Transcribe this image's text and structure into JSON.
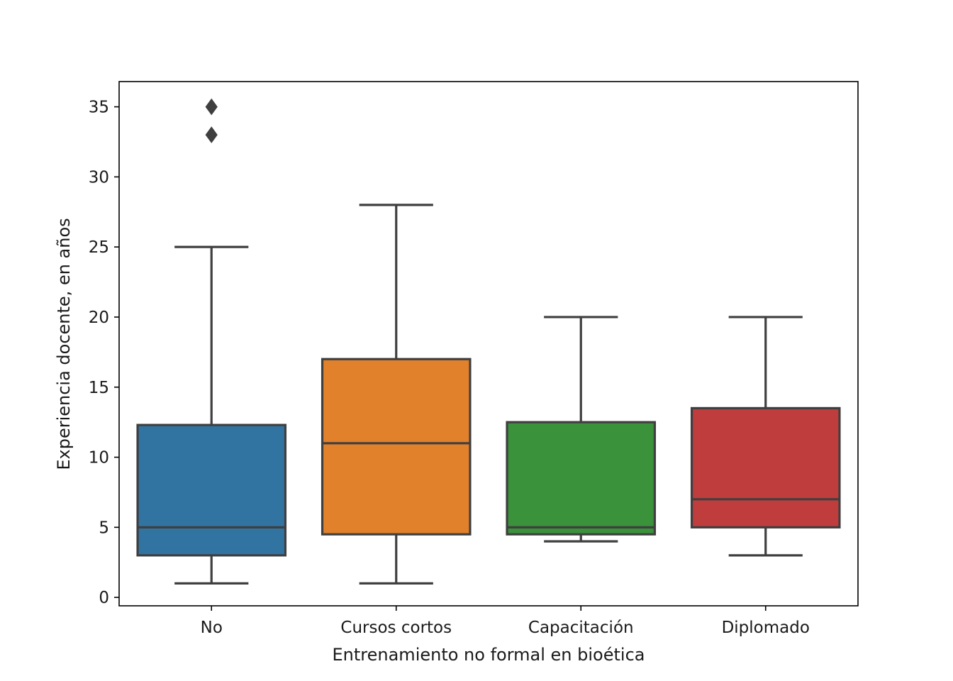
{
  "chart_data": {
    "type": "box",
    "xlabel": "Entrenamiento no formal en bioética",
    "ylabel": "Experiencia docente, en años",
    "ylim": [
      -0.6,
      36.8
    ],
    "yticks": [
      0,
      5,
      10,
      15,
      20,
      25,
      30,
      35
    ],
    "grid": false,
    "legend": "none",
    "categories": [
      "No",
      "Cursos cortos",
      "Capacitación",
      "Diplomado"
    ],
    "boxes": [
      {
        "category": "No",
        "whisker_low": 1,
        "q1": 3,
        "median": 5,
        "q3": 12.3,
        "whisker_high": 25,
        "outliers": [
          33,
          35
        ],
        "color": "#3274a1"
      },
      {
        "category": "Cursos cortos",
        "whisker_low": 1,
        "q1": 4.5,
        "median": 11,
        "q3": 17,
        "whisker_high": 28,
        "outliers": [],
        "color": "#e1812c"
      },
      {
        "category": "Capacitación",
        "whisker_low": 4,
        "q1": 4.5,
        "median": 5,
        "q3": 12.5,
        "whisker_high": 20,
        "outliers": [],
        "color": "#3a923a"
      },
      {
        "category": "Diplomado",
        "whisker_low": 3,
        "q1": 5,
        "median": 7,
        "q3": 13.5,
        "whisker_high": 20,
        "outliers": [],
        "color": "#c03d3e"
      }
    ],
    "line_color": "#3f3f3f"
  }
}
